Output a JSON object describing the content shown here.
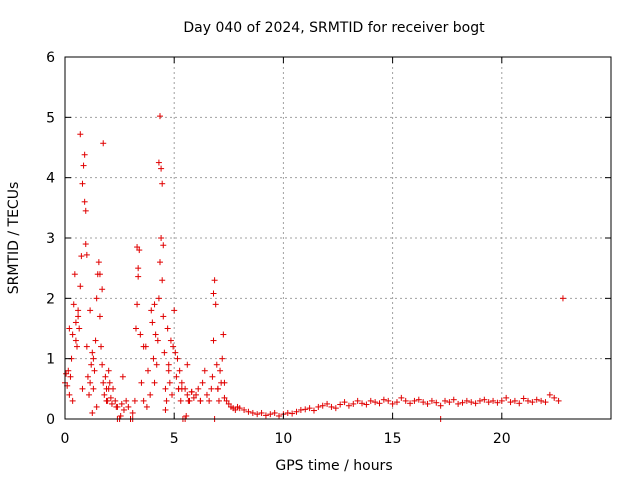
{
  "chart_data": {
    "type": "scatter",
    "title": "Day 040 of 2024, SRMTID for receiver bogt",
    "xlabel": "GPS time / hours",
    "ylabel": "SRMTID / TECUs",
    "xlim": [
      0,
      25
    ],
    "ylim": [
      0,
      6
    ],
    "xticks": [
      0,
      5,
      10,
      15,
      20
    ],
    "yticks": [
      0,
      1,
      2,
      3,
      4,
      5,
      6
    ],
    "xtick_labels": [
      "0",
      "5",
      "10",
      "15",
      "20"
    ],
    "ytick_labels": [
      "0",
      "1",
      "2",
      "3",
      "4",
      "5",
      "6"
    ],
    "grid": true,
    "marker": "+",
    "series": [
      {
        "name": "SRMTID",
        "color": "#e00000",
        "x": [
          0.0,
          0.05,
          0.1,
          0.15,
          0.2,
          0.25,
          0.3,
          0.35,
          0.4,
          0.45,
          0.5,
          0.55,
          0.6,
          0.65,
          0.7,
          0.75,
          0.8,
          0.85,
          0.9,
          0.95,
          1.0,
          1.05,
          1.1,
          1.15,
          1.2,
          1.25,
          1.3,
          1.35,
          1.4,
          1.45,
          1.5,
          1.55,
          1.6,
          1.65,
          1.7,
          1.75,
          1.8,
          1.85,
          1.9,
          1.95,
          2.0,
          2.05,
          2.1,
          2.15,
          2.2,
          2.3,
          2.4,
          2.5,
          2.6,
          2.7,
          2.8,
          2.9,
          3.0,
          3.1,
          3.2,
          3.25,
          3.3,
          3.35,
          3.4,
          3.45,
          3.5,
          3.6,
          3.7,
          3.8,
          3.9,
          4.0,
          4.05,
          4.1,
          4.15,
          4.2,
          4.25,
          4.3,
          4.35,
          4.4,
          4.45,
          4.5,
          4.55,
          4.6,
          4.65,
          4.7,
          4.75,
          4.8,
          4.85,
          4.9,
          4.95,
          5.0,
          5.05,
          5.1,
          5.15,
          5.2,
          5.25,
          5.3,
          5.35,
          5.4,
          5.5,
          5.6,
          5.7,
          5.8,
          5.9,
          6.0,
          6.1,
          6.2,
          6.3,
          6.4,
          6.5,
          6.6,
          6.7,
          6.75,
          6.8,
          6.85,
          6.9,
          6.95,
          7.0,
          7.05,
          7.1,
          7.15,
          7.2,
          7.25,
          7.3,
          7.4,
          7.5,
          7.6,
          7.7,
          7.8,
          7.9,
          8.0,
          8.2,
          8.4,
          8.6,
          8.8,
          9.0,
          9.2,
          9.4,
          9.6,
          9.8,
          10.0,
          10.2,
          10.4,
          10.6,
          10.8,
          11.0,
          11.2,
          11.4,
          11.6,
          11.8,
          12.0,
          12.2,
          12.4,
          12.6,
          12.8,
          13.0,
          13.2,
          13.4,
          13.6,
          13.8,
          14.0,
          14.2,
          14.4,
          14.6,
          14.8,
          15.0,
          15.2,
          15.4,
          15.6,
          15.8,
          16.0,
          16.2,
          16.4,
          16.6,
          16.8,
          17.0,
          17.2,
          17.4,
          17.6,
          17.8,
          18.0,
          18.2,
          18.4,
          18.6,
          18.8,
          19.0,
          19.2,
          19.4,
          19.6,
          19.8,
          20.0,
          20.2,
          20.4,
          20.6,
          20.8,
          21.0,
          21.2,
          21.4,
          21.6,
          21.8,
          22.0,
          22.2,
          22.4,
          22.6,
          22.8,
          0.5,
          0.6,
          0.7,
          0.9,
          0.95,
          1.0,
          1.6,
          1.7,
          1.75,
          4.3,
          4.35,
          4.4,
          4.45,
          4.5,
          3.3,
          3.35,
          6.8,
          6.85,
          2.4,
          3.0,
          3.1,
          5.5,
          5.6,
          0.2,
          0.35,
          0.8,
          1.15,
          1.3,
          1.45,
          1.9,
          2.0,
          3.6,
          3.75,
          3.95,
          4.1,
          4.6,
          4.75,
          5.2,
          5.35,
          5.8,
          6.2,
          7.0,
          7.3,
          1.25,
          2.35,
          2.55,
          2.65,
          5.55,
          5.65,
          17.2
        ],
        "y": [
          0.6,
          0.75,
          0.55,
          0.8,
          0.4,
          0.7,
          1.0,
          1.4,
          1.9,
          2.4,
          1.6,
          1.2,
          1.8,
          1.5,
          2.2,
          2.7,
          3.9,
          4.2,
          3.6,
          2.9,
          1.2,
          0.7,
          0.4,
          0.6,
          0.9,
          1.1,
          0.5,
          0.8,
          1.3,
          2.0,
          2.4,
          2.6,
          1.7,
          1.2,
          0.9,
          0.6,
          0.4,
          0.7,
          0.5,
          0.3,
          0.8,
          0.6,
          0.35,
          0.25,
          0.5,
          0.3,
          0.2,
          0.0,
          0.25,
          0.15,
          0.3,
          0.2,
          0.0,
          0.1,
          0.3,
          1.5,
          1.9,
          2.5,
          2.8,
          1.4,
          0.6,
          0.3,
          1.2,
          0.8,
          0.4,
          1.6,
          1.0,
          1.9,
          1.4,
          0.9,
          1.3,
          2.0,
          2.6,
          3.0,
          2.3,
          1.7,
          1.1,
          0.5,
          0.3,
          1.5,
          0.8,
          0.6,
          1.3,
          0.4,
          1.2,
          1.8,
          1.1,
          0.7,
          1.0,
          0.5,
          0.8,
          0.3,
          0.6,
          0.0,
          0.5,
          0.4,
          0.3,
          0.45,
          0.35,
          0.4,
          0.5,
          0.3,
          0.6,
          0.8,
          0.4,
          0.3,
          0.5,
          0.7,
          1.3,
          2.3,
          1.9,
          0.9,
          0.5,
          0.3,
          0.8,
          0.6,
          1.0,
          1.4,
          0.6,
          0.3,
          0.25,
          0.2,
          0.18,
          0.15,
          0.2,
          0.18,
          0.15,
          0.12,
          0.1,
          0.08,
          0.1,
          0.06,
          0.08,
          0.1,
          0.05,
          0.08,
          0.1,
          0.09,
          0.12,
          0.15,
          0.16,
          0.18,
          0.14,
          0.2,
          0.22,
          0.25,
          0.2,
          0.18,
          0.24,
          0.28,
          0.22,
          0.25,
          0.3,
          0.26,
          0.24,
          0.3,
          0.28,
          0.26,
          0.32,
          0.3,
          0.25,
          0.28,
          0.35,
          0.3,
          0.26,
          0.3,
          0.32,
          0.28,
          0.25,
          0.3,
          0.27,
          0.22,
          0.3,
          0.28,
          0.32,
          0.25,
          0.27,
          0.3,
          0.28,
          0.26,
          0.3,
          0.32,
          0.28,
          0.3,
          0.27,
          0.3,
          0.35,
          0.28,
          0.3,
          0.26,
          0.34,
          0.3,
          0.28,
          0.32,
          0.3,
          0.28,
          0.4,
          0.35,
          0.3,
          2.0,
          1.3,
          1.7,
          4.72,
          4.38,
          3.45,
          2.72,
          2.4,
          2.15,
          4.57,
          4.25,
          5.02,
          4.15,
          3.9,
          2.88,
          2.85,
          2.36,
          2.08,
          0.0,
          0.0,
          0.0,
          0.0,
          0.0,
          0.9,
          1.5,
          0.3,
          0.5,
          1.8,
          1.0,
          0.2,
          0.3,
          0.5,
          1.2,
          0.2,
          1.8,
          0.6,
          0.15,
          0.9,
          0.5,
          0.5,
          0.45,
          0.3,
          0.5,
          0.35,
          0.1,
          0.2,
          0.05,
          0.7,
          0.05,
          0.3,
          0.0
        ]
      }
    ]
  }
}
